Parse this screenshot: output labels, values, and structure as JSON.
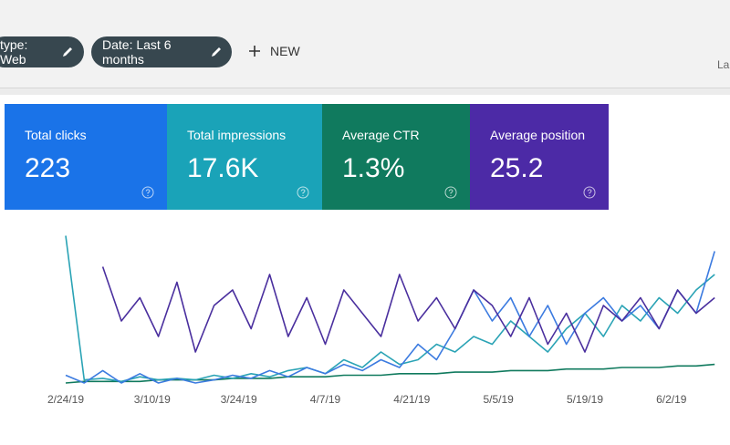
{
  "toolbar": {
    "filters": [
      "type: Web",
      "Date: Last 6 months"
    ],
    "new_button": "NEW",
    "cut_label": "La"
  },
  "metrics": [
    {
      "label": "Total clicks",
      "value": "223",
      "color": "#1a73e8"
    },
    {
      "label": "Total impressions",
      "value": "17.6K",
      "color": "#1aa3b8"
    },
    {
      "label": "Average CTR",
      "value": "1.3%",
      "color": "#107a5e"
    },
    {
      "label": "Average position",
      "value": "25.2",
      "color": "#4c2aa6"
    }
  ],
  "chart_data": {
    "type": "line",
    "x": [
      0,
      3,
      6,
      9,
      12,
      15,
      18,
      21,
      24,
      27,
      30,
      33,
      36,
      39,
      42,
      45,
      48,
      51,
      54,
      57,
      60,
      63,
      66,
      69,
      72,
      75,
      78,
      81,
      84,
      87,
      90,
      93,
      96,
      99,
      102,
      105
    ],
    "xlim": [
      0,
      106
    ],
    "xticks": [
      {
        "value": 0,
        "label": "2/24/19"
      },
      {
        "value": 14,
        "label": "3/10/19"
      },
      {
        "value": 28,
        "label": "3/24/19"
      },
      {
        "value": 42,
        "label": "4/7/19"
      },
      {
        "value": 56,
        "label": "4/21/19"
      },
      {
        "value": 70,
        "label": "5/5/19"
      },
      {
        "value": 84,
        "label": "5/19/19"
      },
      {
        "value": 98,
        "label": "6/2/19"
      }
    ],
    "ylim": [
      0,
      100
    ],
    "series": [
      {
        "color": "#107a5e",
        "values": [
          0,
          1,
          1,
          1,
          1,
          2,
          2,
          2,
          2,
          3,
          3,
          3,
          4,
          4,
          4,
          5,
          5,
          5,
          6,
          6,
          6,
          7,
          7,
          7,
          8,
          8,
          8,
          9,
          9,
          9,
          10,
          10,
          10,
          11,
          11,
          12
        ]
      },
      {
        "color": "#2aa3b5",
        "values": [
          95,
          2,
          3,
          1,
          4,
          2,
          3,
          2,
          5,
          3,
          6,
          4,
          8,
          10,
          6,
          15,
          10,
          20,
          12,
          15,
          25,
          20,
          30,
          25,
          40,
          30,
          20,
          35,
          45,
          30,
          50,
          40,
          55,
          45,
          60,
          70
        ]
      },
      {
        "color": "#3c7be0",
        "values": [
          5,
          0,
          8,
          0,
          6,
          0,
          3,
          0,
          2,
          5,
          3,
          8,
          4,
          10,
          6,
          12,
          8,
          15,
          10,
          25,
          15,
          35,
          60,
          40,
          55,
          30,
          50,
          25,
          45,
          55,
          40,
          50,
          35,
          60,
          45,
          85
        ]
      },
      {
        "color": "#4a2f9e",
        "values": [
          null,
          null,
          75,
          40,
          55,
          30,
          65,
          20,
          50,
          60,
          35,
          70,
          30,
          55,
          25,
          60,
          45,
          30,
          70,
          40,
          55,
          35,
          60,
          50,
          30,
          55,
          25,
          45,
          20,
          50,
          40,
          55,
          35,
          60,
          45,
          55
        ]
      }
    ]
  }
}
